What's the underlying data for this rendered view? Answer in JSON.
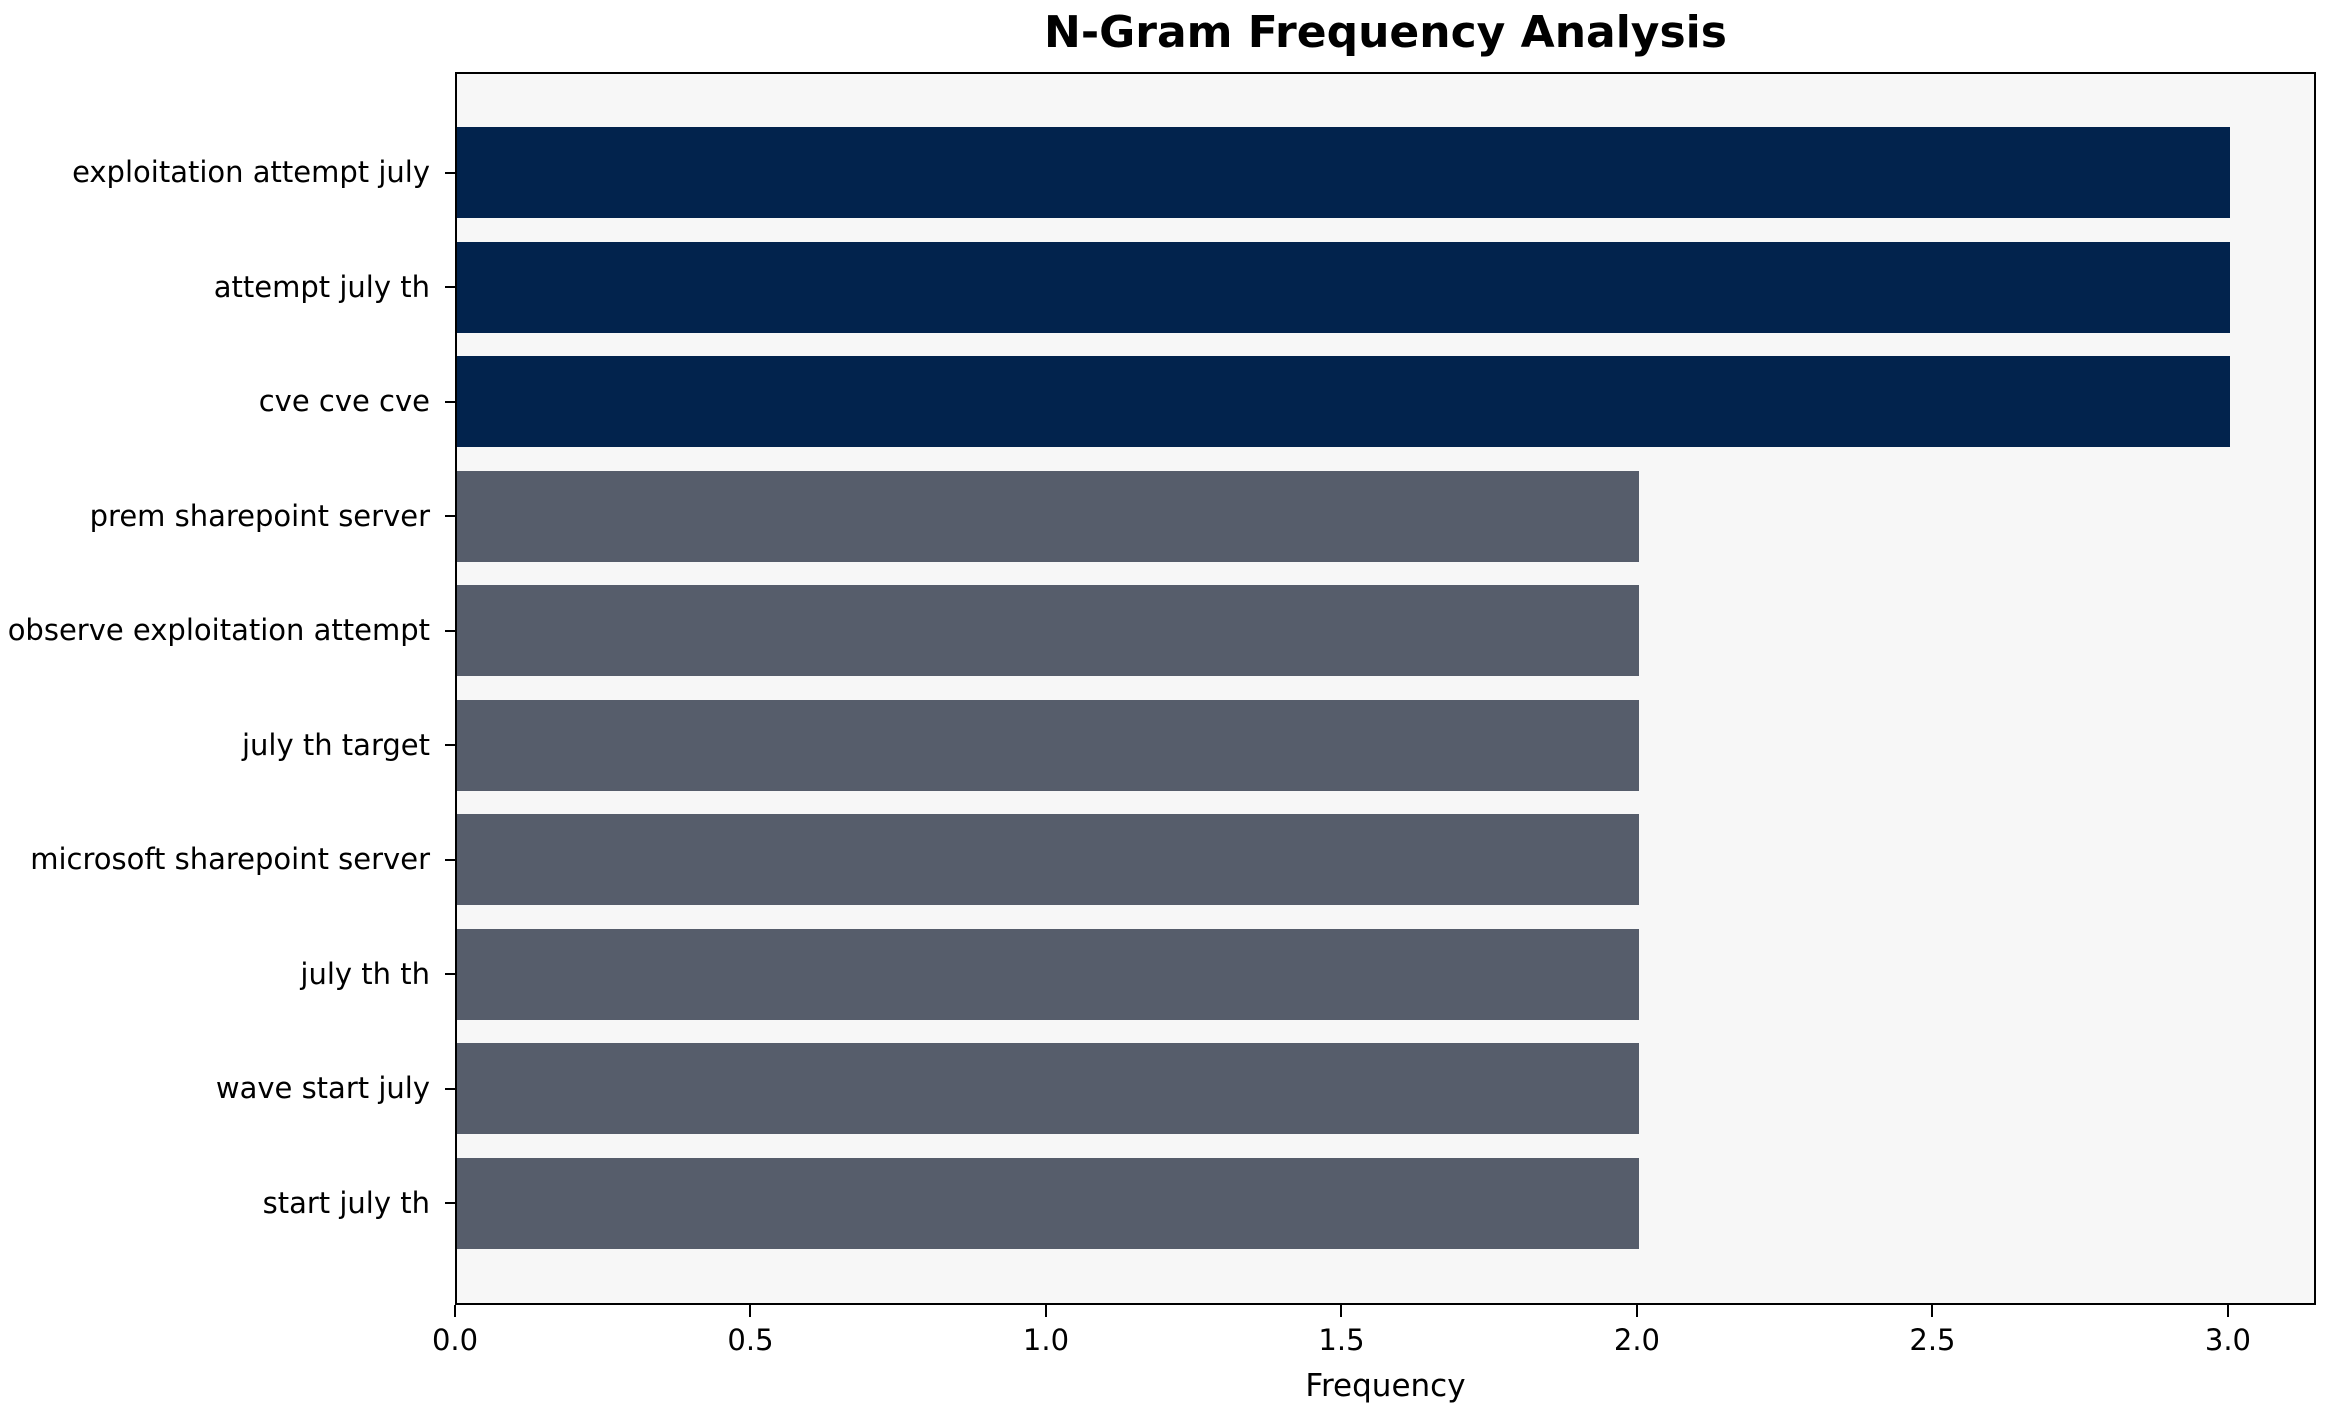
{
  "chart_data": {
    "type": "bar",
    "orientation": "horizontal",
    "title": "N-Gram Frequency Analysis",
    "xlabel": "Frequency",
    "ylabel": "",
    "categories": [
      "exploitation attempt july",
      "attempt july th",
      "cve cve cve",
      "prem sharepoint server",
      "observe exploitation attempt",
      "july th target",
      "microsoft sharepoint server",
      "july th th",
      "wave start july",
      "start july th"
    ],
    "values": [
      3,
      3,
      3,
      2,
      2,
      2,
      2,
      2,
      2,
      2
    ],
    "bar_colors": [
      "#02234d",
      "#02234d",
      "#02234d",
      "#565d6b",
      "#565d6b",
      "#565d6b",
      "#565d6b",
      "#565d6b",
      "#565d6b",
      "#565d6b"
    ],
    "x_ticks": [
      0.0,
      0.5,
      1.0,
      1.5,
      2.0,
      2.5,
      3.0
    ],
    "xlim": [
      0,
      3.149
    ],
    "grid": false,
    "legend": null,
    "colors": {
      "highlight_bar": "#02234d",
      "normal_bar": "#565d6b",
      "plot_background": "#f7f7f7",
      "figure_background": "#ffffff",
      "text": "#000000"
    }
  }
}
